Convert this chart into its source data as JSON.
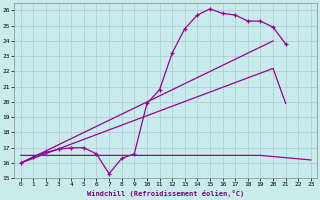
{
  "xlabel": "Windchill (Refroidissement éolien,°C)",
  "xlim": [
    -0.5,
    23.5
  ],
  "ylim": [
    15,
    26.5
  ],
  "xticks": [
    0,
    1,
    2,
    3,
    4,
    5,
    6,
    7,
    8,
    9,
    10,
    11,
    12,
    13,
    14,
    15,
    16,
    17,
    18,
    19,
    20,
    21,
    22,
    23
  ],
  "yticks": [
    15,
    16,
    17,
    18,
    19,
    20,
    21,
    22,
    23,
    24,
    25,
    26
  ],
  "bg_color": "#c8ecec",
  "grid_color": "#b0c8d8",
  "line_color": "#990099",
  "series": [
    {
      "x": [
        0,
        1,
        2,
        3,
        4,
        5,
        6,
        7,
        8,
        9,
        10,
        11,
        12,
        13,
        14,
        15,
        16,
        17,
        18,
        19,
        20,
        21
      ],
      "y": [
        16.0,
        16.4,
        16.7,
        16.9,
        17.0,
        17.0,
        16.6,
        15.3,
        16.3,
        16.6,
        19.9,
        20.8,
        23.2,
        24.8,
        25.7,
        26.1,
        25.8,
        25.7,
        25.3,
        25.3,
        24.9,
        23.8
      ],
      "marker": "+"
    },
    {
      "x": [
        0,
        20
      ],
      "y": [
        16.0,
        24.0
      ],
      "marker": null
    },
    {
      "x": [
        0,
        20,
        21
      ],
      "y": [
        16.0,
        22.2,
        19.9
      ],
      "marker": null
    },
    {
      "x": [
        0,
        19,
        23
      ],
      "y": [
        16.5,
        16.5,
        16.2
      ],
      "marker": null
    }
  ]
}
